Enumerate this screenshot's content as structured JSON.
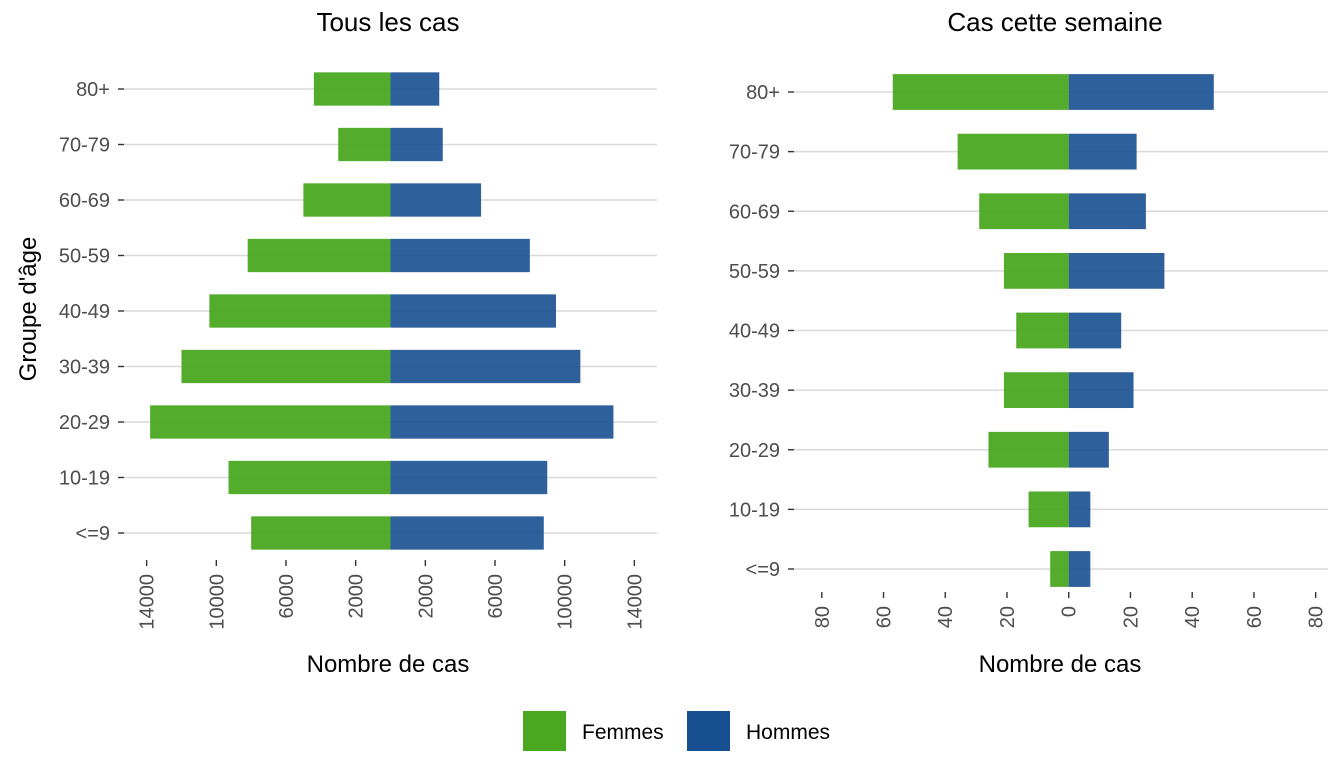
{
  "legend": [
    {
      "label": "Femmes",
      "color": "#4aa820"
    },
    {
      "label": "Hommes",
      "color": "#174f91"
    }
  ],
  "chart_data": [
    {
      "type": "bar",
      "orientation": "horizontal-diverging",
      "title": "Tous les cas",
      "xlabel": "Nombre de cas",
      "ylabel": "Groupe d'âge",
      "categories": [
        "<=9",
        "10-19",
        "20-29",
        "30-39",
        "40-49",
        "50-59",
        "60-69",
        "70-79",
        "80+"
      ],
      "series": [
        {
          "name": "Femmes",
          "color": "#4aa820",
          "values": [
            8000,
            9300,
            13800,
            12000,
            10400,
            8200,
            5000,
            3000,
            4400
          ]
        },
        {
          "name": "Hommes",
          "color": "#174f91",
          "values": [
            8800,
            9000,
            12800,
            10900,
            9500,
            8000,
            5200,
            3000,
            2800
          ]
        }
      ],
      "xlim": [
        -15300,
        15300
      ],
      "xticks": [
        -14000,
        -10000,
        -6000,
        -2000,
        2000,
        6000,
        10000,
        14000
      ],
      "xtick_labels": [
        "14000",
        "10000",
        "6000",
        "2000",
        "2000",
        "6000",
        "10000",
        "14000"
      ]
    },
    {
      "type": "bar",
      "orientation": "horizontal-diverging",
      "title": "Cas cette semaine",
      "xlabel": "Nombre de cas",
      "ylabel": "",
      "categories": [
        "<=9",
        "10-19",
        "20-29",
        "30-39",
        "40-49",
        "50-59",
        "60-69",
        "70-79",
        "80+"
      ],
      "series": [
        {
          "name": "Femmes",
          "color": "#4aa820",
          "values": [
            6,
            13,
            26,
            21,
            17,
            21,
            29,
            36,
            57
          ]
        },
        {
          "name": "Hommes",
          "color": "#174f91",
          "values": [
            7,
            7,
            13,
            21,
            17,
            31,
            25,
            22,
            47
          ]
        }
      ],
      "xlim": [
        -89,
        84
      ],
      "xticks": [
        -80,
        -60,
        -40,
        -20,
        0,
        20,
        40,
        60,
        80
      ],
      "xtick_labels": [
        "80",
        "60",
        "40",
        "20",
        "0",
        "20",
        "40",
        "60",
        "80"
      ]
    }
  ]
}
